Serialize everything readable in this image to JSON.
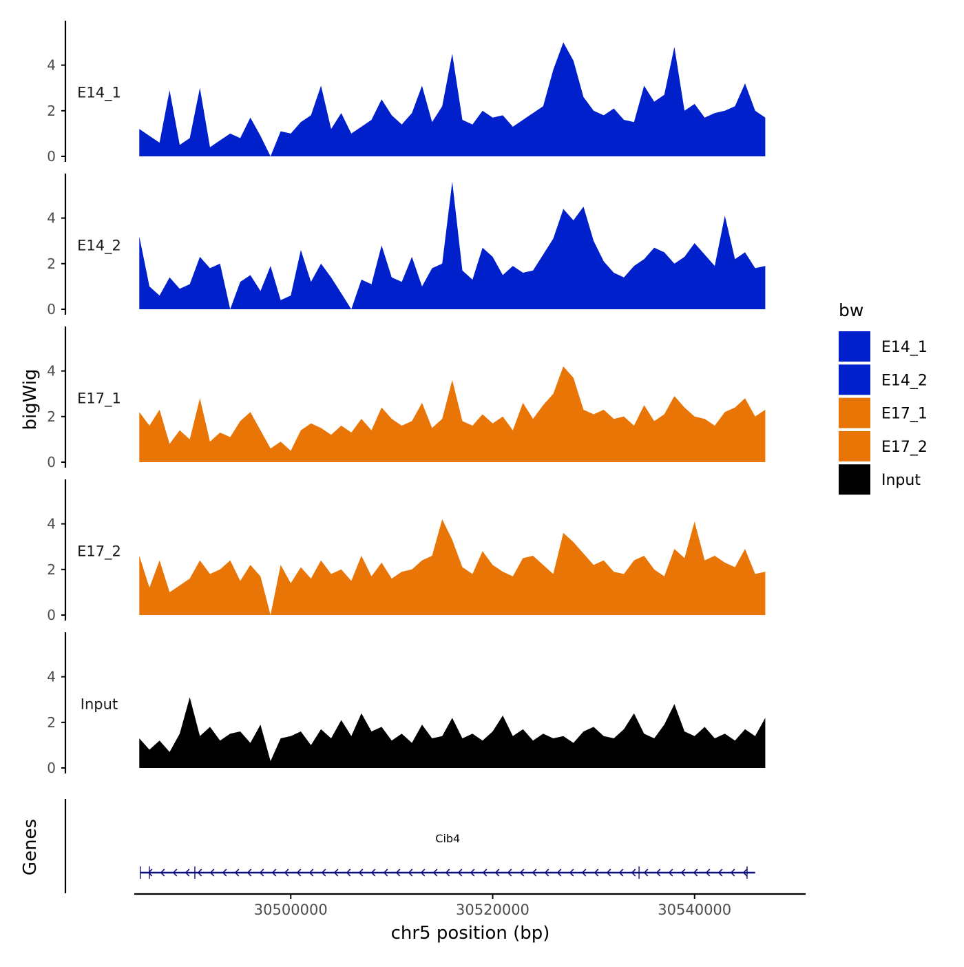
{
  "colors": {
    "E14": "#0020CC",
    "E17": "#E87506",
    "Input": "#000000",
    "gene": "#0F0F7A",
    "axis": "#000000",
    "tick_text": "#4D4D4D"
  },
  "chart_data": {
    "type": "area",
    "title": "",
    "ylabel": "bigWig",
    "genes_ylabel": "Genes",
    "xlabel": "chr5 position (bp)",
    "xlim": [
      30484500,
      30551000
    ],
    "ylim": [
      0,
      6
    ],
    "x_ticks": [
      30500000,
      30520000,
      30540000
    ],
    "x_tick_labels": [
      "30500000",
      "30520000",
      "30540000"
    ],
    "y_ticks": [
      0,
      2,
      4
    ],
    "y_tick_labels": [
      "0",
      "2",
      "4"
    ],
    "legend": {
      "title": "bw",
      "position": "right",
      "items": [
        {
          "label": "E14_1",
          "color": "#0020CC"
        },
        {
          "label": "E14_2",
          "color": "#0020CC"
        },
        {
          "label": "E17_1",
          "color": "#E87506"
        },
        {
          "label": "E17_2",
          "color": "#E87506"
        },
        {
          "label": "Input",
          "color": "#000000"
        }
      ]
    },
    "series": [
      {
        "name": "E14_1",
        "color": "#0020CC",
        "x": [
          30485000,
          30486000,
          30487000,
          30488000,
          30489000,
          30490000,
          30491000,
          30492000,
          30493000,
          30494000,
          30495000,
          30496000,
          30497000,
          30498000,
          30499000,
          30500000,
          30501000,
          30502000,
          30503000,
          30504000,
          30505000,
          30506000,
          30507000,
          30508000,
          30509000,
          30510000,
          30511000,
          30512000,
          30513000,
          30514000,
          30515000,
          30516000,
          30517000,
          30518000,
          30519000,
          30520000,
          30521000,
          30522000,
          30523000,
          30524000,
          30525000,
          30526000,
          30527000,
          30528000,
          30529000,
          30530000,
          30531000,
          30532000,
          30533000,
          30534000,
          30535000,
          30536000,
          30537000,
          30538000,
          30539000,
          30540000,
          30541000,
          30542000,
          30543000,
          30544000,
          30545000,
          30546000,
          30547000
        ],
        "values": [
          1.2,
          0.9,
          0.6,
          2.9,
          0.5,
          0.8,
          3.0,
          0.4,
          0.7,
          1.0,
          0.8,
          1.7,
          0.9,
          0.0,
          1.1,
          1.0,
          1.5,
          1.8,
          3.1,
          1.2,
          1.9,
          1.0,
          1.3,
          1.6,
          2.5,
          1.8,
          1.4,
          1.9,
          3.1,
          1.5,
          2.2,
          4.5,
          1.6,
          1.4,
          2.0,
          1.7,
          1.8,
          1.3,
          1.6,
          1.9,
          2.2,
          3.8,
          5.0,
          4.2,
          2.6,
          2.0,
          1.8,
          2.1,
          1.6,
          1.5,
          3.1,
          2.4,
          2.7,
          4.8,
          2.0,
          2.3,
          1.7,
          1.9,
          2.0,
          2.2,
          3.2,
          2.0,
          1.7
        ]
      },
      {
        "name": "E14_2",
        "color": "#0020CC",
        "x": [
          30485000,
          30486000,
          30487000,
          30488000,
          30489000,
          30490000,
          30491000,
          30492000,
          30493000,
          30494000,
          30495000,
          30496000,
          30497000,
          30498000,
          30499000,
          30500000,
          30501000,
          30502000,
          30503000,
          30504000,
          30505000,
          30506000,
          30507000,
          30508000,
          30509000,
          30510000,
          30511000,
          30512000,
          30513000,
          30514000,
          30515000,
          30516000,
          30517000,
          30518000,
          30519000,
          30520000,
          30521000,
          30522000,
          30523000,
          30524000,
          30525000,
          30526000,
          30527000,
          30528000,
          30529000,
          30530000,
          30531000,
          30532000,
          30533000,
          30534000,
          30535000,
          30536000,
          30537000,
          30538000,
          30539000,
          30540000,
          30541000,
          30542000,
          30543000,
          30544000,
          30545000,
          30546000,
          30547000
        ],
        "values": [
          3.2,
          1.0,
          0.6,
          1.4,
          0.9,
          1.1,
          2.3,
          1.8,
          2.0,
          0.0,
          1.2,
          1.5,
          0.8,
          1.9,
          0.4,
          0.6,
          2.6,
          1.2,
          2.0,
          1.4,
          0.7,
          0.0,
          1.3,
          1.1,
          2.8,
          1.4,
          1.2,
          2.3,
          1.0,
          1.8,
          2.0,
          5.6,
          1.7,
          1.3,
          2.7,
          2.3,
          1.5,
          1.9,
          1.6,
          1.7,
          2.4,
          3.1,
          4.4,
          3.9,
          4.5,
          3.0,
          2.1,
          1.6,
          1.4,
          1.9,
          2.2,
          2.7,
          2.5,
          2.0,
          2.3,
          2.9,
          2.4,
          1.9,
          4.1,
          2.2,
          2.5,
          1.8,
          1.9
        ]
      },
      {
        "name": "E17_1",
        "color": "#E87506",
        "x": [
          30485000,
          30486000,
          30487000,
          30488000,
          30489000,
          30490000,
          30491000,
          30492000,
          30493000,
          30494000,
          30495000,
          30496000,
          30497000,
          30498000,
          30499000,
          30500000,
          30501000,
          30502000,
          30503000,
          30504000,
          30505000,
          30506000,
          30507000,
          30508000,
          30509000,
          30510000,
          30511000,
          30512000,
          30513000,
          30514000,
          30515000,
          30516000,
          30517000,
          30518000,
          30519000,
          30520000,
          30521000,
          30522000,
          30523000,
          30524000,
          30525000,
          30526000,
          30527000,
          30528000,
          30529000,
          30530000,
          30531000,
          30532000,
          30533000,
          30534000,
          30535000,
          30536000,
          30537000,
          30538000,
          30539000,
          30540000,
          30541000,
          30542000,
          30543000,
          30544000,
          30545000,
          30546000,
          30547000
        ],
        "values": [
          2.2,
          1.6,
          2.3,
          0.8,
          1.4,
          1.0,
          2.8,
          0.9,
          1.3,
          1.1,
          1.8,
          2.2,
          1.4,
          0.6,
          0.9,
          0.5,
          1.4,
          1.7,
          1.5,
          1.2,
          1.6,
          1.3,
          1.9,
          1.4,
          2.4,
          1.9,
          1.6,
          1.8,
          2.6,
          1.5,
          1.9,
          3.6,
          1.8,
          1.6,
          2.1,
          1.7,
          2.0,
          1.4,
          2.6,
          1.9,
          2.5,
          3.0,
          4.2,
          3.7,
          2.3,
          2.1,
          2.3,
          1.9,
          2.0,
          1.6,
          2.5,
          1.8,
          2.1,
          2.9,
          2.4,
          2.0,
          1.9,
          1.6,
          2.2,
          2.4,
          2.8,
          2.0,
          2.3
        ]
      },
      {
        "name": "E17_2",
        "color": "#E87506",
        "x": [
          30485000,
          30486000,
          30487000,
          30488000,
          30489000,
          30490000,
          30491000,
          30492000,
          30493000,
          30494000,
          30495000,
          30496000,
          30497000,
          30498000,
          30499000,
          30500000,
          30501000,
          30502000,
          30503000,
          30504000,
          30505000,
          30506000,
          30507000,
          30508000,
          30509000,
          30510000,
          30511000,
          30512000,
          30513000,
          30514000,
          30515000,
          30516000,
          30517000,
          30518000,
          30519000,
          30520000,
          30521000,
          30522000,
          30523000,
          30524000,
          30525000,
          30526000,
          30527000,
          30528000,
          30529000,
          30530000,
          30531000,
          30532000,
          30533000,
          30534000,
          30535000,
          30536000,
          30537000,
          30538000,
          30539000,
          30540000,
          30541000,
          30542000,
          30543000,
          30544000,
          30545000,
          30546000,
          30547000
        ],
        "values": [
          2.6,
          1.2,
          2.4,
          1.0,
          1.3,
          1.6,
          2.4,
          1.8,
          2.0,
          2.4,
          1.5,
          2.2,
          1.7,
          0.0,
          2.2,
          1.4,
          2.1,
          1.6,
          2.4,
          1.8,
          2.0,
          1.5,
          2.6,
          1.7,
          2.3,
          1.6,
          1.9,
          2.0,
          2.4,
          2.6,
          4.2,
          3.3,
          2.1,
          1.8,
          2.8,
          2.2,
          1.9,
          1.7,
          2.5,
          2.6,
          2.2,
          1.8,
          3.6,
          3.2,
          2.7,
          2.2,
          2.4,
          1.9,
          1.8,
          2.4,
          2.6,
          2.0,
          1.7,
          2.9,
          2.5,
          4.1,
          2.4,
          2.6,
          2.3,
          2.1,
          2.9,
          1.8,
          1.9
        ]
      },
      {
        "name": "Input",
        "color": "#000000",
        "x": [
          30485000,
          30486000,
          30487000,
          30488000,
          30489000,
          30490000,
          30491000,
          30492000,
          30493000,
          30494000,
          30495000,
          30496000,
          30497000,
          30498000,
          30499000,
          30500000,
          30501000,
          30502000,
          30503000,
          30504000,
          30505000,
          30506000,
          30507000,
          30508000,
          30509000,
          30510000,
          30511000,
          30512000,
          30513000,
          30514000,
          30515000,
          30516000,
          30517000,
          30518000,
          30519000,
          30520000,
          30521000,
          30522000,
          30523000,
          30524000,
          30525000,
          30526000,
          30527000,
          30528000,
          30529000,
          30530000,
          30531000,
          30532000,
          30533000,
          30534000,
          30535000,
          30536000,
          30537000,
          30538000,
          30539000,
          30540000,
          30541000,
          30542000,
          30543000,
          30544000,
          30545000,
          30546000,
          30547000
        ],
        "values": [
          1.3,
          0.8,
          1.2,
          0.7,
          1.5,
          3.1,
          1.4,
          1.8,
          1.2,
          1.5,
          1.6,
          1.1,
          1.9,
          0.3,
          1.3,
          1.4,
          1.6,
          1.0,
          1.7,
          1.3,
          2.1,
          1.4,
          2.4,
          1.6,
          1.8,
          1.2,
          1.5,
          1.1,
          1.9,
          1.3,
          1.4,
          2.2,
          1.3,
          1.5,
          1.2,
          1.6,
          2.3,
          1.4,
          1.7,
          1.2,
          1.5,
          1.3,
          1.4,
          1.1,
          1.6,
          1.8,
          1.4,
          1.3,
          1.7,
          2.4,
          1.5,
          1.3,
          1.9,
          2.8,
          1.6,
          1.4,
          1.8,
          1.3,
          1.5,
          1.2,
          1.7,
          1.4,
          2.2
        ]
      }
    ],
    "genes": [
      {
        "name": "Cib4",
        "start": 30485100,
        "end": 30546000,
        "strand": "-",
        "exons": [
          30485100,
          30486000,
          30490500,
          30534500,
          30545200
        ]
      }
    ]
  }
}
